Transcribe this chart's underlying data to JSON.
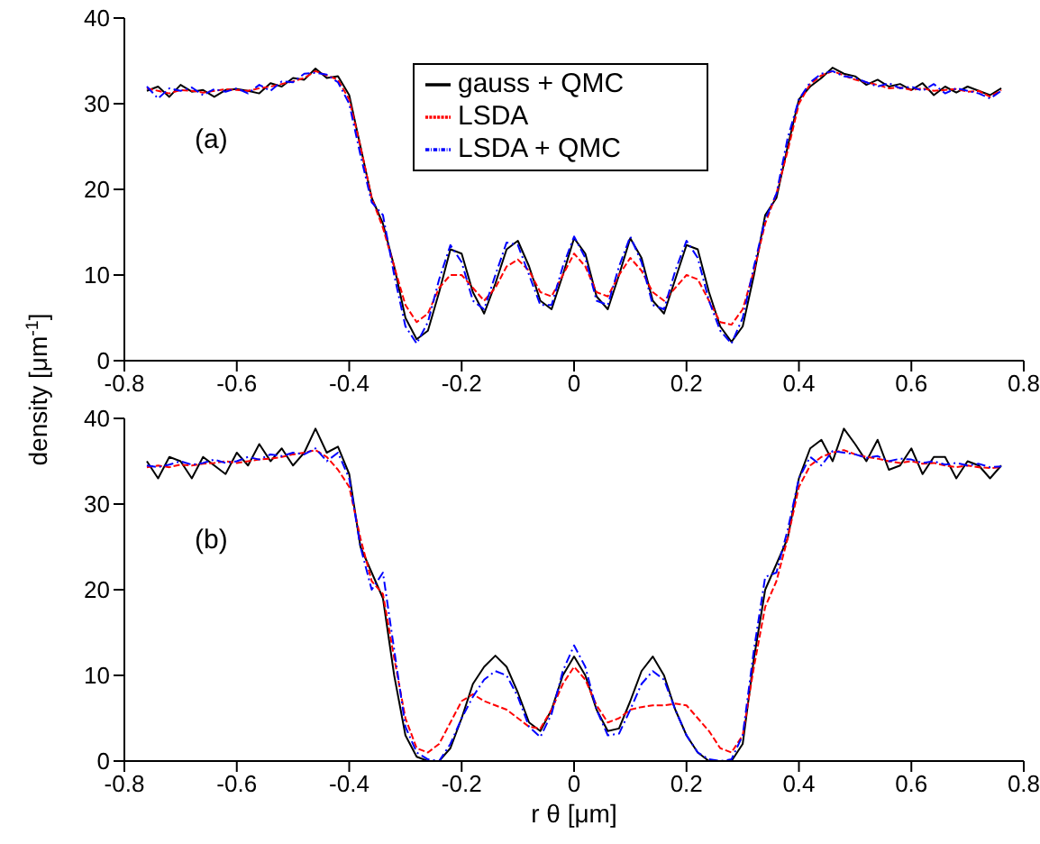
{
  "chart_data": [
    {
      "type": "line",
      "ylabel": "density [μm$^{-1}$]",
      "annotations": [
        "(a)"
      ],
      "legend": "top",
      "xlim": [
        -0.8,
        0.8
      ],
      "xticks": [
        -0.8,
        -0.6,
        -0.4,
        -0.2,
        0,
        0.2,
        0.4,
        0.6,
        0.8
      ],
      "ylim": [
        0,
        40
      ],
      "yticks": [
        0,
        10,
        20,
        30,
        40
      ],
      "grid": false,
      "marker": "none",
      "x": [
        -0.76,
        -0.74,
        -0.72,
        -0.7,
        -0.68,
        -0.66,
        -0.64,
        -0.62,
        -0.6,
        -0.58,
        -0.56,
        -0.54,
        -0.52,
        -0.5,
        -0.48,
        -0.46,
        -0.44,
        -0.42,
        -0.4,
        -0.38,
        -0.36,
        -0.34,
        -0.32,
        -0.3,
        -0.28,
        -0.26,
        -0.24,
        -0.22,
        -0.2,
        -0.18,
        -0.16,
        -0.14,
        -0.12,
        -0.1,
        -0.08,
        -0.06,
        -0.04,
        -0.02,
        0,
        0.02,
        0.04,
        0.06,
        0.08,
        0.1,
        0.12,
        0.14,
        0.16,
        0.18,
        0.2,
        0.22,
        0.24,
        0.26,
        0.28,
        0.3,
        0.32,
        0.34,
        0.36,
        0.38,
        0.4,
        0.42,
        0.44,
        0.46,
        0.48,
        0.5,
        0.52,
        0.54,
        0.56,
        0.58,
        0.6,
        0.62,
        0.64,
        0.66,
        0.68,
        0.7,
        0.72,
        0.74,
        0.76
      ],
      "series": [
        {
          "name": "gauss + QMC",
          "color": "#000000",
          "line_style": "solid",
          "values": [
            31.5,
            32,
            30.8,
            32.2,
            31.4,
            31.6,
            30.8,
            31.6,
            31.7,
            31.5,
            31.2,
            32.4,
            32,
            33,
            32.8,
            34.1,
            33,
            33.2,
            31,
            25,
            19,
            16,
            11,
            5,
            2.5,
            3.5,
            8,
            13,
            12.5,
            8,
            5.5,
            9,
            13,
            14,
            11,
            7,
            6,
            10,
            14.3,
            12.5,
            7.5,
            6,
            10,
            14.3,
            12,
            7,
            5.5,
            9.5,
            13.5,
            13,
            8,
            4,
            2.2,
            4,
            10,
            17,
            19,
            25,
            30.5,
            32,
            33,
            34.2,
            33.5,
            33.2,
            32.2,
            32.8,
            32,
            32.3,
            31.6,
            32.4,
            31,
            32,
            31.3,
            32,
            31.5,
            31,
            31.8
          ]
        },
        {
          "name": "LSDA",
          "color": "#ff0000",
          "line_style": "dashed",
          "values": [
            31.8,
            31.5,
            31.2,
            31.6,
            31.5,
            31.3,
            31.5,
            31.7,
            31.6,
            31.5,
            31.8,
            32,
            32.3,
            32.6,
            33,
            33.8,
            33.3,
            32.8,
            30.5,
            25,
            19,
            15.5,
            11,
            6.5,
            4.5,
            5.5,
            8.5,
            10,
            10,
            8.5,
            7,
            8.5,
            11,
            11.8,
            10.5,
            8,
            7.5,
            10,
            12.5,
            11,
            8,
            7.5,
            10,
            12,
            10.5,
            8,
            7,
            8.5,
            10,
            9.5,
            7,
            4.5,
            4.2,
            6,
            10.5,
            16,
            19.5,
            24.5,
            30,
            32.3,
            33.3,
            33.8,
            33.3,
            32.8,
            32.5,
            32.2,
            31.8,
            31.9,
            31.6,
            31.8,
            31.5,
            31.6,
            31.7,
            31.4,
            31.5,
            30.8,
            31.6
          ]
        },
        {
          "name": "LSDA + QMC",
          "color": "#0000ff",
          "line_style": "dashdot",
          "values": [
            32,
            30.6,
            31.8,
            31.5,
            31.9,
            31,
            31.7,
            31.4,
            31.8,
            31.2,
            32.2,
            31.5,
            32.6,
            32.5,
            33.5,
            33.6,
            33.4,
            32.5,
            30,
            24,
            18.5,
            17,
            10,
            4,
            2,
            4.5,
            9.5,
            13.5,
            11.5,
            7,
            6,
            10,
            13.8,
            13.5,
            10,
            6.5,
            6.5,
            11,
            14.5,
            12,
            7,
            6.5,
            11,
            14.5,
            11.5,
            6.5,
            6,
            10.5,
            14,
            12,
            7,
            3.5,
            2,
            5,
            11,
            16.5,
            19.5,
            26,
            30.5,
            32.5,
            33.5,
            33.8,
            33.2,
            33,
            32.5,
            32,
            32.4,
            31.8,
            32,
            31.5,
            32.3,
            31.2,
            31.8,
            31.5,
            31.2,
            30.6,
            31.5
          ]
        }
      ]
    },
    {
      "type": "line",
      "xlabel": "r θ [μm]",
      "annotations": [
        "(b)"
      ],
      "xlim": [
        -0.8,
        0.8
      ],
      "xticks": [
        -0.8,
        -0.6,
        -0.4,
        -0.2,
        0,
        0.2,
        0.4,
        0.6,
        0.8
      ],
      "ylim": [
        0,
        40
      ],
      "yticks": [
        0,
        10,
        20,
        30,
        40
      ],
      "grid": false,
      "marker": "none",
      "x": [
        -0.76,
        -0.74,
        -0.72,
        -0.7,
        -0.68,
        -0.66,
        -0.64,
        -0.62,
        -0.6,
        -0.58,
        -0.56,
        -0.54,
        -0.52,
        -0.5,
        -0.48,
        -0.46,
        -0.44,
        -0.42,
        -0.4,
        -0.38,
        -0.36,
        -0.34,
        -0.32,
        -0.3,
        -0.28,
        -0.26,
        -0.24,
        -0.22,
        -0.2,
        -0.18,
        -0.16,
        -0.14,
        -0.12,
        -0.1,
        -0.08,
        -0.06,
        -0.04,
        -0.02,
        0,
        0.02,
        0.04,
        0.06,
        0.08,
        0.1,
        0.12,
        0.14,
        0.16,
        0.18,
        0.2,
        0.22,
        0.24,
        0.26,
        0.28,
        0.3,
        0.32,
        0.34,
        0.36,
        0.38,
        0.4,
        0.42,
        0.44,
        0.46,
        0.48,
        0.5,
        0.52,
        0.54,
        0.56,
        0.58,
        0.6,
        0.62,
        0.64,
        0.66,
        0.68,
        0.7,
        0.72,
        0.74,
        0.76
      ],
      "series": [
        {
          "color": "#000000",
          "line_style": "solid",
          "values": [
            35,
            33,
            35.5,
            35,
            33,
            35.5,
            34.5,
            33.5,
            36,
            34.5,
            37,
            35,
            36.5,
            34.5,
            36,
            38.8,
            36,
            36.7,
            33.5,
            25,
            22,
            19,
            10,
            3,
            0.5,
            0,
            0,
            1.5,
            5,
            9,
            11,
            12.3,
            11,
            8,
            4.5,
            3.5,
            6,
            10,
            12.2,
            10,
            6,
            3.5,
            3.8,
            7,
            10.5,
            12.2,
            10,
            6,
            3,
            1,
            0,
            0,
            0,
            2,
            12,
            20,
            23,
            26,
            33,
            36.5,
            37.5,
            35,
            38.8,
            37,
            35,
            37.5,
            34,
            34.5,
            36.5,
            33.5,
            35.5,
            35.5,
            33,
            35,
            34.5,
            33,
            34.5
          ]
        },
        {
          "color": "#ff0000",
          "line_style": "dashed",
          "values": [
            34.3,
            34.5,
            34.3,
            34.6,
            34.5,
            34.7,
            34.8,
            35,
            34.8,
            35,
            35.2,
            35.3,
            35.5,
            35.8,
            36,
            36.3,
            35.5,
            34,
            32,
            26,
            21,
            19.5,
            12,
            5,
            1.5,
            1,
            2,
            4.5,
            7,
            7.8,
            7,
            6.5,
            6,
            5,
            4,
            3.8,
            6,
            9,
            11,
            9.5,
            6.5,
            4.5,
            5,
            6,
            6.3,
            6.5,
            6.5,
            6.7,
            6.5,
            5,
            3.5,
            1.5,
            1,
            3,
            11,
            18,
            21,
            26,
            32,
            34.5,
            35.5,
            36,
            36.3,
            35.8,
            35.5,
            35.3,
            35,
            34.8,
            35,
            34.7,
            34.8,
            34.5,
            34.3,
            34.5,
            34.3,
            34.2,
            34.3
          ]
        },
        {
          "color": "#0000ff",
          "line_style": "dashdot",
          "values": [
            34.5,
            34.3,
            34.6,
            35,
            34.6,
            34.8,
            35.2,
            34.8,
            35,
            35.5,
            35.2,
            35.8,
            35.6,
            36,
            35.8,
            36.5,
            35,
            36,
            33,
            25,
            20,
            22,
            13,
            4,
            1,
            0.2,
            0,
            2,
            5,
            7.5,
            9.5,
            10.5,
            10,
            7.5,
            4,
            2.8,
            5.5,
            10.5,
            13.5,
            11,
            6,
            3,
            3.2,
            6,
            9,
            10.5,
            9.5,
            6,
            3,
            1,
            0.2,
            0,
            0.2,
            3,
            13,
            21.5,
            22,
            27,
            33,
            35.5,
            34.5,
            36.2,
            36,
            35.8,
            35.4,
            35.6,
            35,
            35.3,
            35.2,
            34.8,
            35,
            34.6,
            34.8,
            34.5,
            34.7,
            34.3,
            34.4
          ]
        }
      ]
    }
  ]
}
